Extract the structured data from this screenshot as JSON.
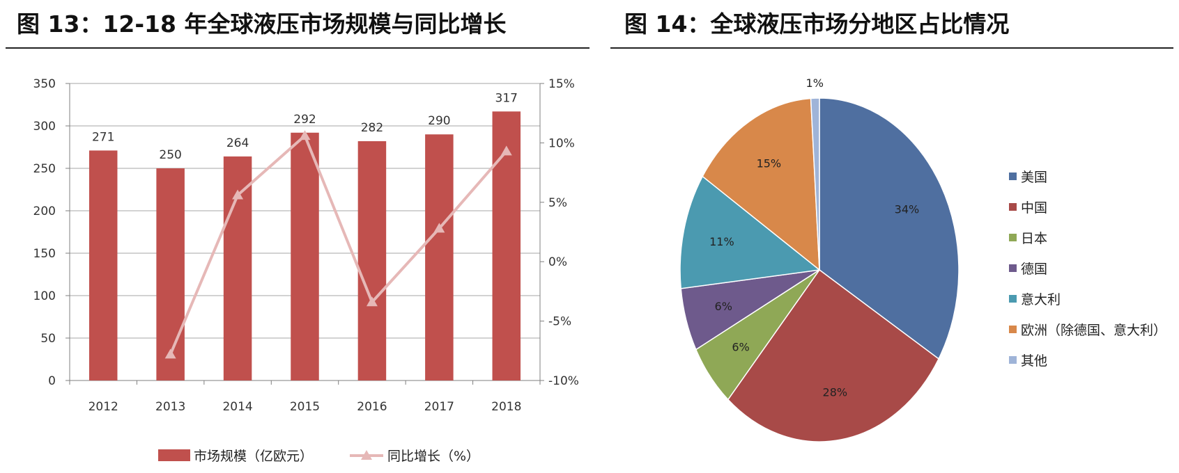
{
  "left": {
    "title": "图 13：12-18 年全球液压市场规模与同比增长",
    "chart_data": {
      "type": "bar",
      "categories": [
        "2012",
        "2013",
        "2014",
        "2015",
        "2016",
        "2017",
        "2018"
      ],
      "series": [
        {
          "name": "市场规模（亿欧元）",
          "type": "bar",
          "axis": "left",
          "color": "#c0504d",
          "values": [
            271,
            250,
            264,
            292,
            282,
            290,
            317
          ]
        },
        {
          "name": "同比增长（%）",
          "type": "line",
          "axis": "right",
          "color": "#e6b8b7",
          "values": [
            null,
            -7.8,
            5.6,
            10.6,
            -3.4,
            2.8,
            9.3
          ]
        }
      ],
      "ylim": [
        0,
        350
      ],
      "yticks": [
        "0",
        "50",
        "100",
        "150",
        "200",
        "250",
        "300",
        "350"
      ],
      "y2lim": [
        -10,
        15
      ],
      "y2ticks": [
        "-10%",
        "-5%",
        "0%",
        "5%",
        "10%",
        "15%"
      ],
      "data_labels": [
        "271",
        "250",
        "264",
        "292",
        "282",
        "290",
        "317"
      ],
      "legend_position": "bottom",
      "grid": true
    }
  },
  "right": {
    "title": "图 14：全球液压市场分地区占比情况",
    "chart_data": {
      "type": "pie",
      "slices": [
        {
          "name": "美国",
          "value": 34,
          "label": "34%",
          "color": "#4f6fa0"
        },
        {
          "name": "中国",
          "value": 28,
          "label": "28%",
          "color": "#a84a48"
        },
        {
          "name": "日本",
          "value": 6,
          "label": "6%",
          "color": "#8fa856"
        },
        {
          "name": "德国",
          "value": 6,
          "label": "6%",
          "color": "#6e5a8c"
        },
        {
          "name": "意大利",
          "value": 11,
          "label": "11%",
          "color": "#4b9ab0"
        },
        {
          "name": "欧洲（除德国、意大利）",
          "value": 15,
          "label": "15%",
          "color": "#d8884a"
        },
        {
          "name": "其他",
          "value": 1,
          "label": "1%",
          "color": "#9fb4d8"
        }
      ],
      "legend_position": "right"
    }
  }
}
